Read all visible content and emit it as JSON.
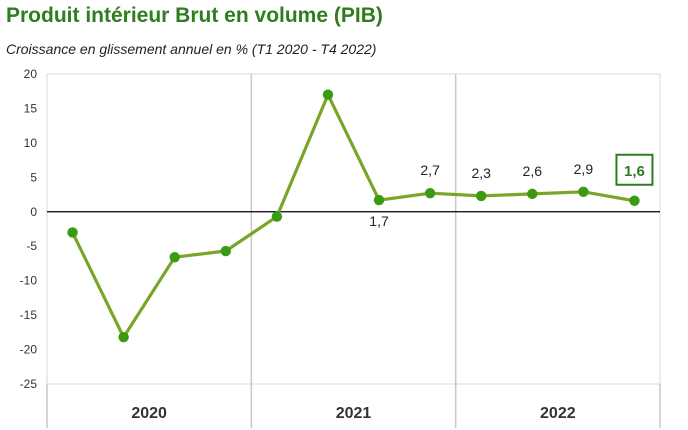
{
  "chart_data": {
    "type": "line",
    "title": "Produit intérieur Brut en volume (PIB)",
    "subtitle": "Croissance en glissement annuel en % (T1 2020 - T4 2022)",
    "y_ticks": [
      "20",
      "15",
      "10",
      "5",
      "0",
      "-5",
      "-10",
      "-15",
      "-20",
      "-25"
    ],
    "ylim": [
      -25,
      20
    ],
    "groups": [
      "2020",
      "2021",
      "2022"
    ],
    "quarters_per_group": 4,
    "series": [
      {
        "values": [
          -3.0,
          -18.2,
          -6.6,
          -5.7,
          -0.7,
          17.0,
          1.7,
          2.7,
          2.3,
          2.6,
          2.9,
          1.6
        ],
        "color": "#7aa529",
        "marker_color": "#3a9a12"
      }
    ],
    "data_labels": [
      {
        "index": 6,
        "text": "1,7",
        "position": "below"
      },
      {
        "index": 7,
        "text": "2,7",
        "position": "above"
      },
      {
        "index": 8,
        "text": "2,3",
        "position": "above"
      },
      {
        "index": 9,
        "text": "2,6",
        "position": "above"
      },
      {
        "index": 10,
        "text": "2,9",
        "position": "above"
      },
      {
        "index": 11,
        "text": "1,6",
        "position": "above",
        "boxed": true
      }
    ],
    "grid": false,
    "legend": "none"
  },
  "colors": {
    "title": "#2e7d1f",
    "highlight_label": "#2e7d1f",
    "zero_line": "#000000",
    "separator": "#c8c8c8"
  }
}
